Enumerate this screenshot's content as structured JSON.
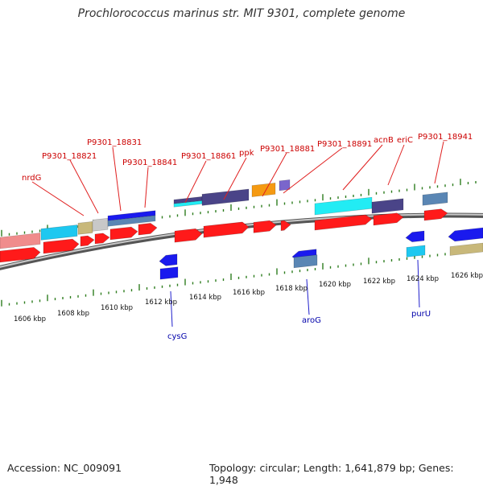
{
  "title": "Prochlorococcus marinus str. MIT 9301, complete genome",
  "accession": "Accession: NC_009091",
  "topology": "Topology: circular; Length: 1,641,879 bp; Genes: 1,948",
  "kbp_labels": [
    "1606 kbp",
    "1608 kbp",
    "1610 kbp",
    "1612 kbp",
    "1614 kbp",
    "1616 kbp",
    "1618 kbp",
    "1620 kbp",
    "1622 kbp",
    "1624 kbp",
    "1626 kbp"
  ],
  "gene_labels_top": [
    "nrdG",
    "P9301_18821",
    "P9301_18831",
    "P9301_18841",
    "P9301_18861",
    "ppk",
    "P9301_18881",
    "P9301_18891",
    "acnB",
    "eriC",
    "P9301_18941"
  ],
  "gene_labels_bottom": [
    "cysG",
    "aroG",
    "purU"
  ],
  "colors": {
    "backbone": "#8a8a8a",
    "forward_gene": "#ff1a1a",
    "reverse_gene": "#1a1aee",
    "tick": "#2e7d1e",
    "label_forward": "#cc0000",
    "label_reverse": "#0000aa",
    "salmon": "#f08c8c",
    "cyan": "#1ec8f0",
    "khaki": "#c8b87a",
    "grey": "#c8c8c8",
    "steel": "#5a86b4",
    "slate": "#4a4488",
    "orange": "#f59a12",
    "violet": "#7a66cc",
    "aqua": "#22ecf4"
  }
}
